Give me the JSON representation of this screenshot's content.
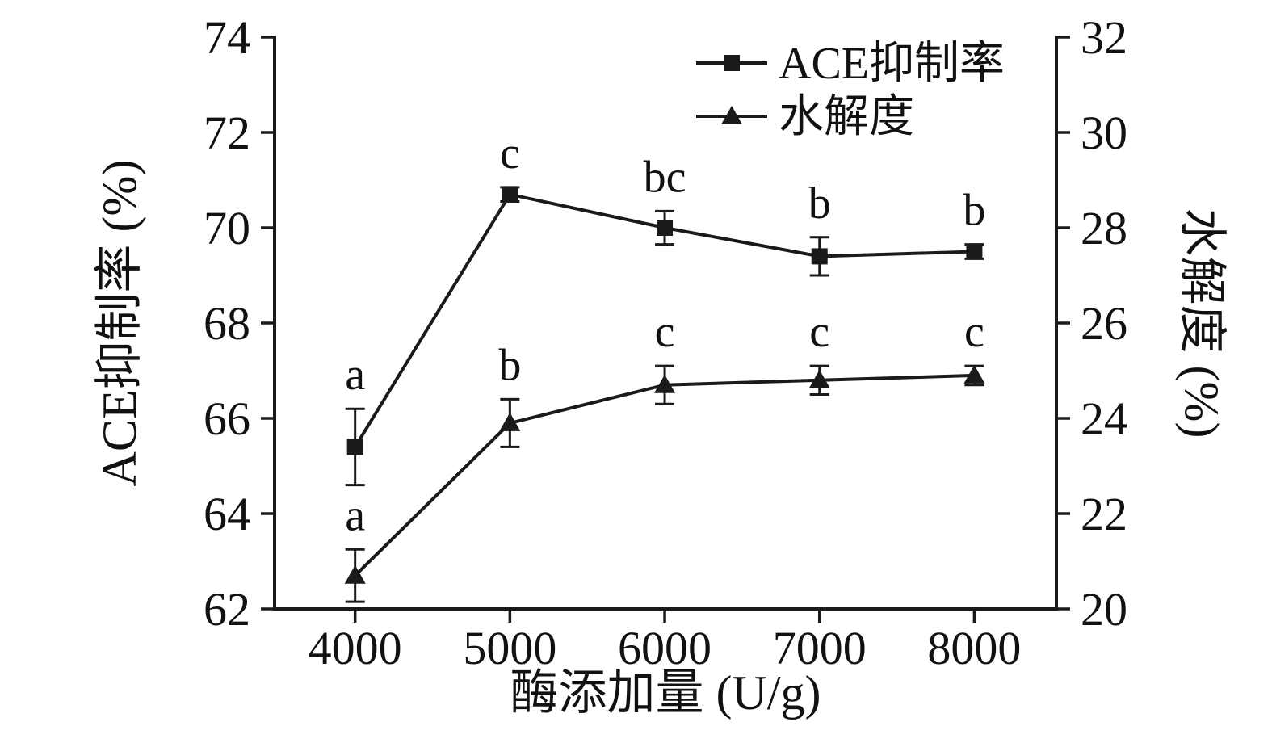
{
  "chart_data": {
    "type": "line",
    "title": "",
    "xlabel": "酶添加量 (U/g)",
    "x": [
      4000,
      5000,
      6000,
      7000,
      8000
    ],
    "x_ticks": [
      4000,
      5000,
      6000,
      7000,
      8000
    ],
    "xlim": [
      3480,
      8530
    ],
    "left_axis": {
      "label": "ACE抑制率 (%)",
      "min": 62,
      "max": 74,
      "ticks": [
        62,
        64,
        66,
        68,
        70,
        72,
        74
      ]
    },
    "right_axis": {
      "label": "水解度 (%)",
      "min": 20,
      "max": 32,
      "ticks": [
        20,
        22,
        24,
        26,
        28,
        30,
        32
      ]
    },
    "series": [
      {
        "name": "ACE抑制率",
        "axis": "left",
        "marker": "square",
        "values": [
          65.4,
          70.7,
          70.0,
          69.4,
          69.5
        ],
        "errors": [
          0.8,
          0.15,
          0.35,
          0.4,
          0.15
        ],
        "sig_labels": [
          "a",
          "c",
          "bc",
          "b",
          "b"
        ]
      },
      {
        "name": "水解度",
        "axis": "right",
        "marker": "triangle",
        "values": [
          20.7,
          23.9,
          24.7,
          24.8,
          24.9
        ],
        "errors": [
          0.55,
          0.5,
          0.4,
          0.3,
          0.2
        ],
        "sig_labels": [
          "a",
          "b",
          "c",
          "c",
          "c"
        ]
      }
    ],
    "legend": {
      "position": "top-center",
      "entries": [
        "ACE抑制率",
        "水解度"
      ]
    },
    "grid": false,
    "colors": {
      "line": "#1a1a1a",
      "background": "#ffffff"
    }
  }
}
